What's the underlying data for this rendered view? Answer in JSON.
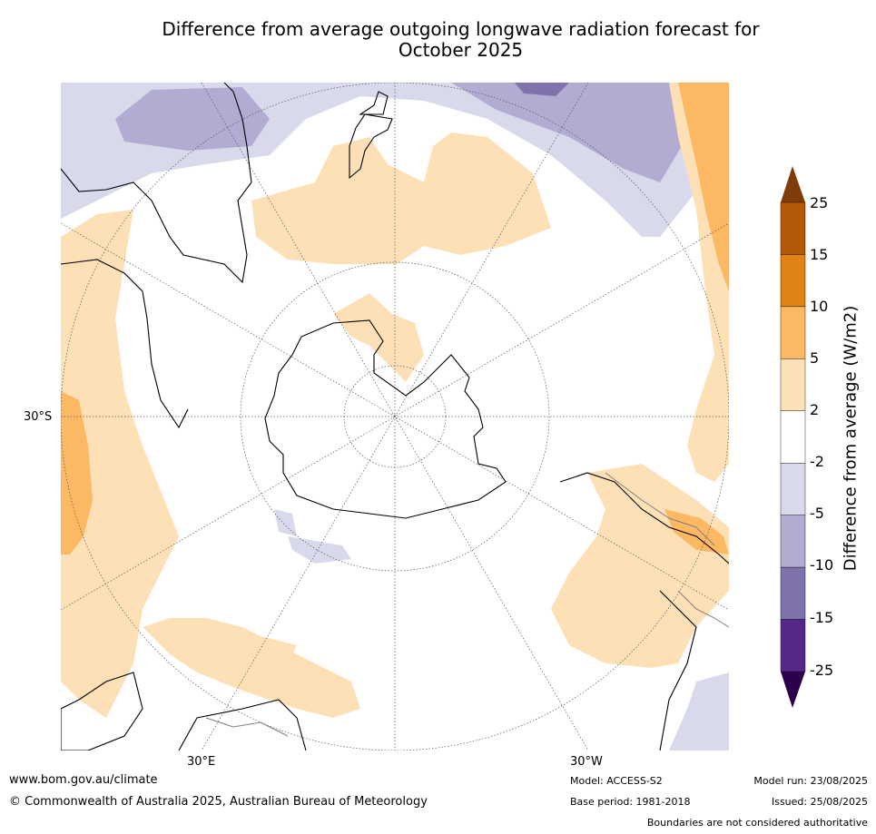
{
  "title": "Difference from average outgoing longwave radiation forecast for",
  "title_line2": "October 2025",
  "map": {
    "projection": "south-polar-stereographic",
    "lat_label": "30°S",
    "lon_labels": [
      "30°E",
      "30°W"
    ],
    "graticule": "dotted",
    "colors": {
      "land_outline": "#000000",
      "boundary": "#808080",
      "neutral": "#ffffff"
    }
  },
  "colorbar": {
    "title": "Difference from average (W/m2)",
    "labels": [
      "25",
      "15",
      "10",
      "5",
      "2",
      "-2",
      "-5",
      "-10",
      "-15",
      "-25"
    ],
    "bins": [
      {
        "range": "> 25",
        "color": "#7f3b08"
      },
      {
        "range": "15 to 25",
        "color": "#b35806"
      },
      {
        "range": "10 to 15",
        "color": "#e08214"
      },
      {
        "range": "5 to 10",
        "color": "#fdb863"
      },
      {
        "range": "2 to 5",
        "color": "#fee0b6"
      },
      {
        "range": "-2 to 2",
        "color": "#ffffff"
      },
      {
        "range": "-5 to -2",
        "color": "#d8daeb"
      },
      {
        "range": "-10 to -5",
        "color": "#b2abd2"
      },
      {
        "range": "-15 to -10",
        "color": "#8073ac"
      },
      {
        "range": "-25 to -15",
        "color": "#542788"
      },
      {
        "range": "< -25",
        "color": "#2d004b"
      }
    ]
  },
  "footer": {
    "website": "www.bom.gov.au/climate",
    "copyright": "© Commonwealth of Australia 2025, Australian Bureau of Meteorology",
    "model": "Model: ACCESS-S2",
    "base_period": "Base period: 1981-2018",
    "model_run": "Model run: 23/08/2025",
    "issued": "Issued: 25/08/2025",
    "disclaimer": "Boundaries are not considered authoritative"
  }
}
